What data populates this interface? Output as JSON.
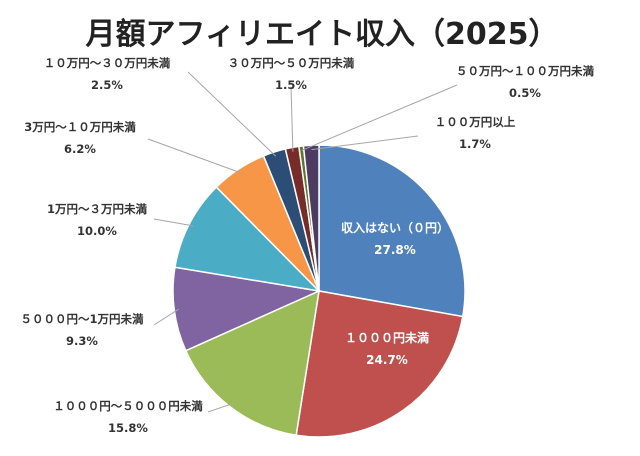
{
  "chart_data": {
    "type": "pie",
    "title": "月額アフィリエイト収入（2025）",
    "slices": [
      {
        "label": "収入はない（０円）",
        "value": 27.8,
        "display": "27.8%",
        "color": "#4f81bd"
      },
      {
        "label": "１０００円未満",
        "value": 24.7,
        "display": "24.7%",
        "color": "#c0504d"
      },
      {
        "label": "１０００円～５０００円未満",
        "value": 15.8,
        "display": "15.8%",
        "color": "#9bbb59"
      },
      {
        "label": "５０００円～1万円未満",
        "value": 9.3,
        "display": "9.3%",
        "color": "#8064a2"
      },
      {
        "label": "1万円～３万円未満",
        "value": 10.0,
        "display": "10.0%",
        "color": "#4bacc6"
      },
      {
        "label": "3万円～１０万円未満",
        "value": 6.2,
        "display": "6.2%",
        "color": "#f79646"
      },
      {
        "label": "１０万円～３０万円未満",
        "value": 2.5,
        "display": "2.5%",
        "color": "#2c4d75"
      },
      {
        "label": "３０万円～５０万円未満",
        "value": 1.5,
        "display": "1.5%",
        "color": "#772c2a"
      },
      {
        "label": "５０万円～１００万円未満",
        "value": 0.5,
        "display": "0.5%",
        "color": "#5f7530"
      },
      {
        "label": "１００万円以上",
        "value": 1.7,
        "display": "1.7%",
        "color": "#4d3b62"
      }
    ],
    "start_angle_deg": 0,
    "direction": "clockwise",
    "legend": "none"
  }
}
